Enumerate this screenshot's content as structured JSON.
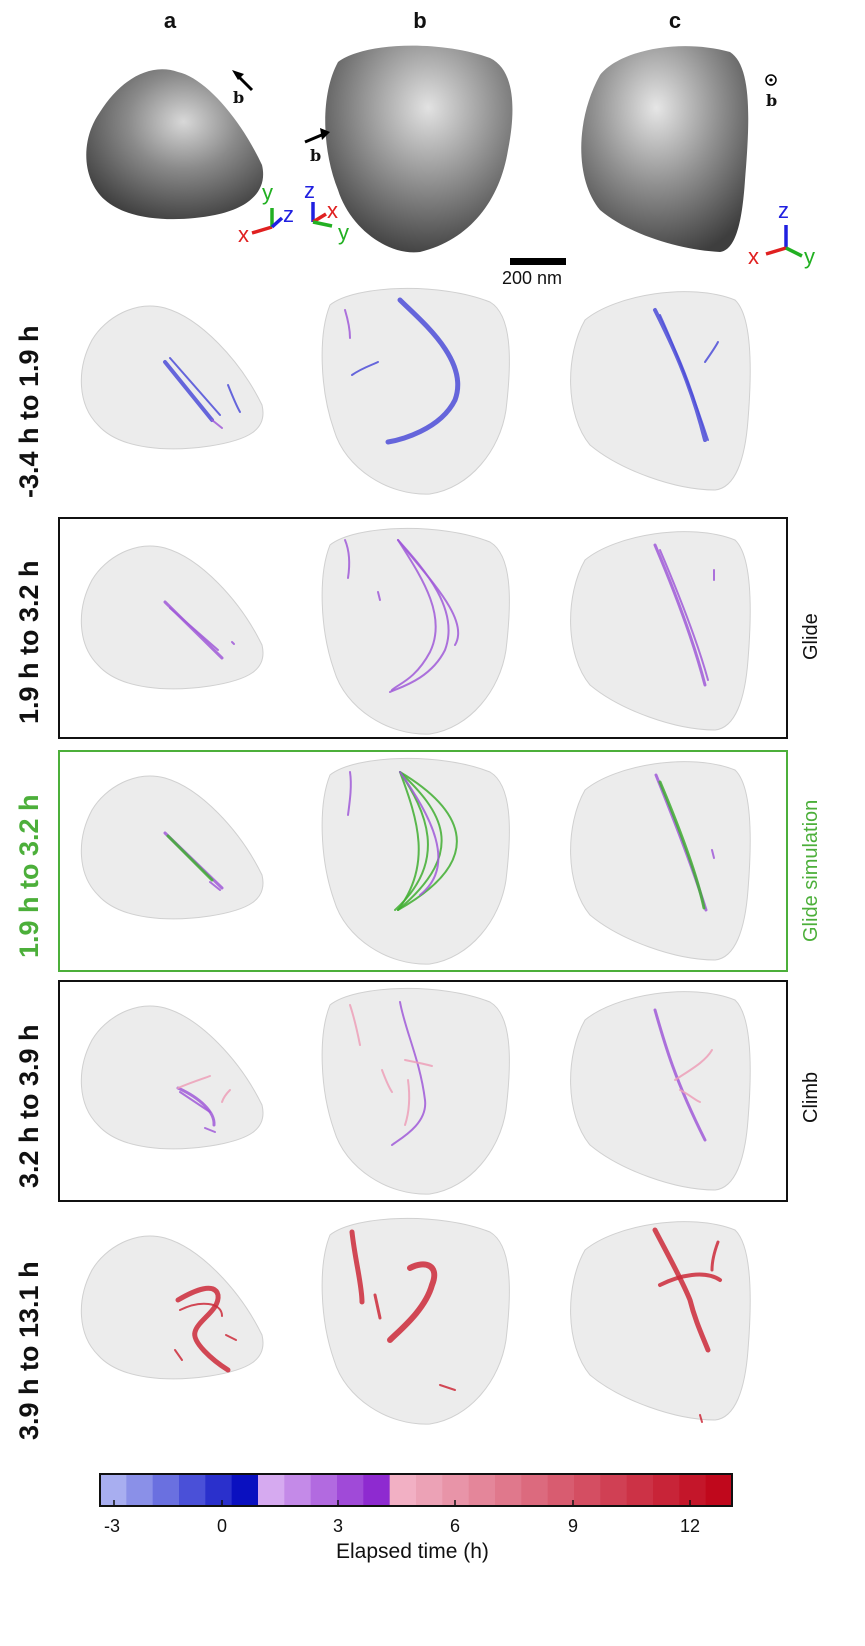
{
  "columns": [
    "a",
    "b",
    "c"
  ],
  "view_marker_label": "b",
  "axis_labels": {
    "x": "x",
    "y": "y",
    "z": "z"
  },
  "scale_bar": {
    "label": "200 nm"
  },
  "rows": [
    {
      "label": "-3.4 h to 1.9 h"
    },
    {
      "label": "1.9 h to 3.2 h",
      "side_label": "Glide"
    },
    {
      "label": "1.9 h to 3.2 h",
      "side_label": "Glide simulation"
    },
    {
      "label": "3.2 h to 3.9 h",
      "side_label": "Climb"
    },
    {
      "label": "3.9 h to 13.1 h"
    }
  ],
  "colorbar": {
    "ticks": [
      "-3",
      "0",
      "3",
      "6",
      "9",
      "12"
    ],
    "label": "Elapsed time (h)",
    "colors": [
      "#a8aef0",
      "#8a90e8",
      "#6a70e0",
      "#4a50d8",
      "#2a30cc",
      "#0a10c0",
      "#d6aaf0",
      "#c48ae8",
      "#b26ae0",
      "#a04ad8",
      "#8e2ad0",
      "#f2b0c4",
      "#eca2b6",
      "#e894a8",
      "#e4869a",
      "#e0788c",
      "#dc6a7e",
      "#d85c70",
      "#d44e62",
      "#d04054",
      "#cc3246",
      "#c82438",
      "#c4162a",
      "#c0081c"
    ]
  },
  "colors": {
    "early": "#4e4ed8",
    "glide": "#a05ad8",
    "simulation": "#3fae30",
    "climb_light": "#eda0b8",
    "late": "#cc2a3a",
    "green_frame": "#4caf3a"
  }
}
